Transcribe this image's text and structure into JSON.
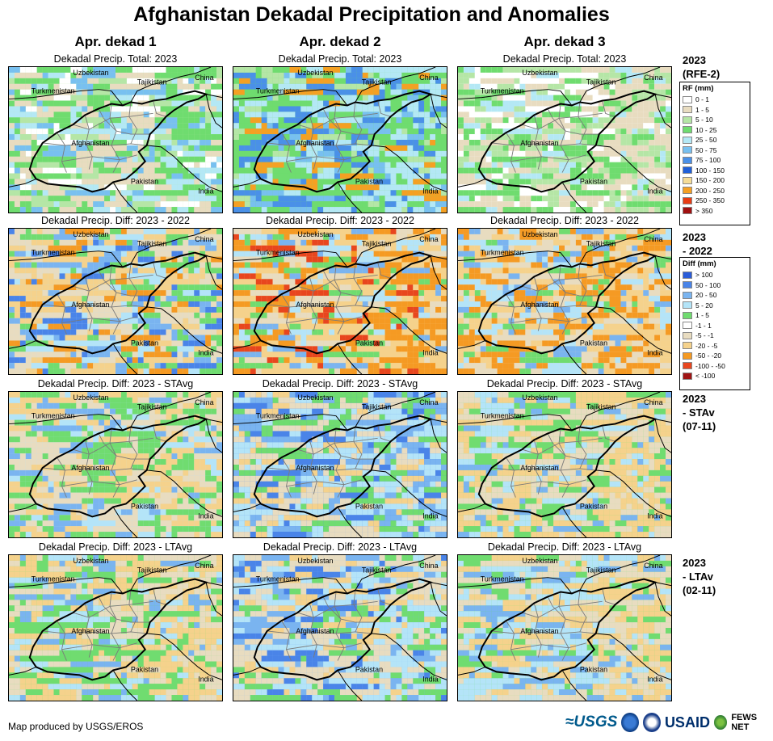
{
  "title": "Afghanistan Dekadal Precipitation and Anomalies",
  "columns": [
    "Apr. dekad 1",
    "Apr. dekad 2",
    "Apr. dekad 3"
  ],
  "rows": [
    {
      "panel_title": "Dekadal Precip. Total: 2023",
      "label": [
        "2023",
        "(RFE-2)"
      ],
      "scheme": "total"
    },
    {
      "panel_title": "Dekadal Precip. Diff: 2023 - 2022",
      "label": [
        "2023",
        "- 2022"
      ],
      "scheme": "diff"
    },
    {
      "panel_title": "Dekadal Precip. Diff: 2023 - STAvg",
      "label": [
        "2023",
        "- STAv",
        "(07-11)"
      ],
      "scheme": "diff"
    },
    {
      "panel_title": "Dekadal Precip. Diff: 2023 - LTAvg",
      "label": [
        "2023",
        "- LTAv",
        "(02-11)"
      ],
      "scheme": "diff"
    }
  ],
  "map_labels": {
    "uzbekistan": "Uzbekistan",
    "tajikistan": "Tajikistan",
    "china": "China",
    "turkmenistan": "Turkmenistan",
    "afghanistan": "Afghanistan",
    "pakistan": "Pakistan",
    "india": "India"
  },
  "legend_rf": {
    "title": "RF (mm)",
    "items": [
      {
        "label": "0 - 1",
        "color": "#ffffff"
      },
      {
        "label": "1 - 5",
        "color": "#e8dcc0"
      },
      {
        "label": "5 - 10",
        "color": "#b5e6a6"
      },
      {
        "label": "10 - 25",
        "color": "#6fdc6f"
      },
      {
        "label": "25 - 50",
        "color": "#b4e8f5"
      },
      {
        "label": "50 - 75",
        "color": "#78c0f0"
      },
      {
        "label": "75 - 100",
        "color": "#4a90e8"
      },
      {
        "label": "100 - 150",
        "color": "#2060d8"
      },
      {
        "label": "150 - 200",
        "color": "#f5dc96"
      },
      {
        "label": "200 - 250",
        "color": "#f5a023"
      },
      {
        "label": "250 - 350",
        "color": "#e83c14"
      },
      {
        "label": "> 350",
        "color": "#a01010"
      }
    ]
  },
  "legend_diff": {
    "title": "Diff (mm)",
    "items": [
      {
        "label": "> 100",
        "color": "#2a5cd8"
      },
      {
        "label": "50 - 100",
        "color": "#4a84e8"
      },
      {
        "label": "20 - 50",
        "color": "#7ab4f0"
      },
      {
        "label": "5 - 20",
        "color": "#b4e4f8"
      },
      {
        "label": "1 - 5",
        "color": "#70dc70"
      },
      {
        "label": "-1 - 1",
        "color": "#ffffff"
      },
      {
        "label": "-5 - -1",
        "color": "#e8dcc0"
      },
      {
        "label": "-20 - -5",
        "color": "#f5d28c"
      },
      {
        "label": "-50 - -20",
        "color": "#f59a23"
      },
      {
        "label": "-100 - -50",
        "color": "#e8461e"
      },
      {
        "label": "< -100",
        "color": "#a01414"
      }
    ]
  },
  "credit": "Map produced by USGS/EROS",
  "logos": {
    "usgs": "≈USGS",
    "usaid": "USAID",
    "fews": "FEWS NET"
  }
}
